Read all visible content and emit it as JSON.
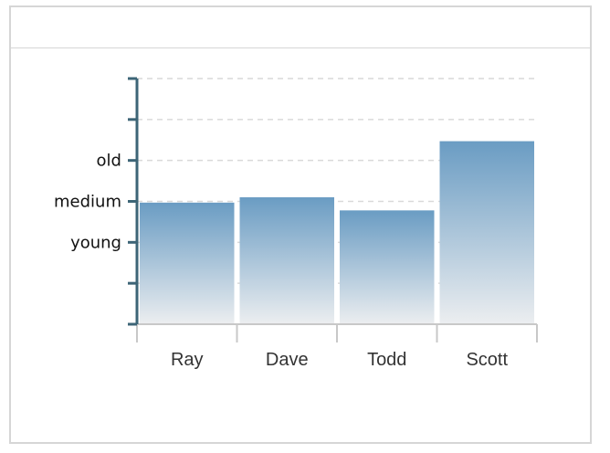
{
  "chart_data": {
    "type": "bar",
    "categories": [
      "Ray",
      "Dave",
      "Todd",
      "Scott"
    ],
    "values": [
      2.97,
      3.1,
      2.78,
      4.47
    ],
    "ylim": [
      0,
      6
    ],
    "yticks": [
      0,
      1,
      2,
      3,
      4,
      5,
      6
    ],
    "ytick_labels": {
      "2": "young",
      "3": "medium",
      "4": "old"
    },
    "grid": true,
    "title": "",
    "xlabel": "",
    "ylabel": "",
    "colors": {
      "bar_top": "#6a9cc3",
      "bar_bottom": "#eceef0",
      "axis_y": "#3d6577",
      "axis_x": "#c8c8c8",
      "grid": "#d9d9d9"
    }
  }
}
